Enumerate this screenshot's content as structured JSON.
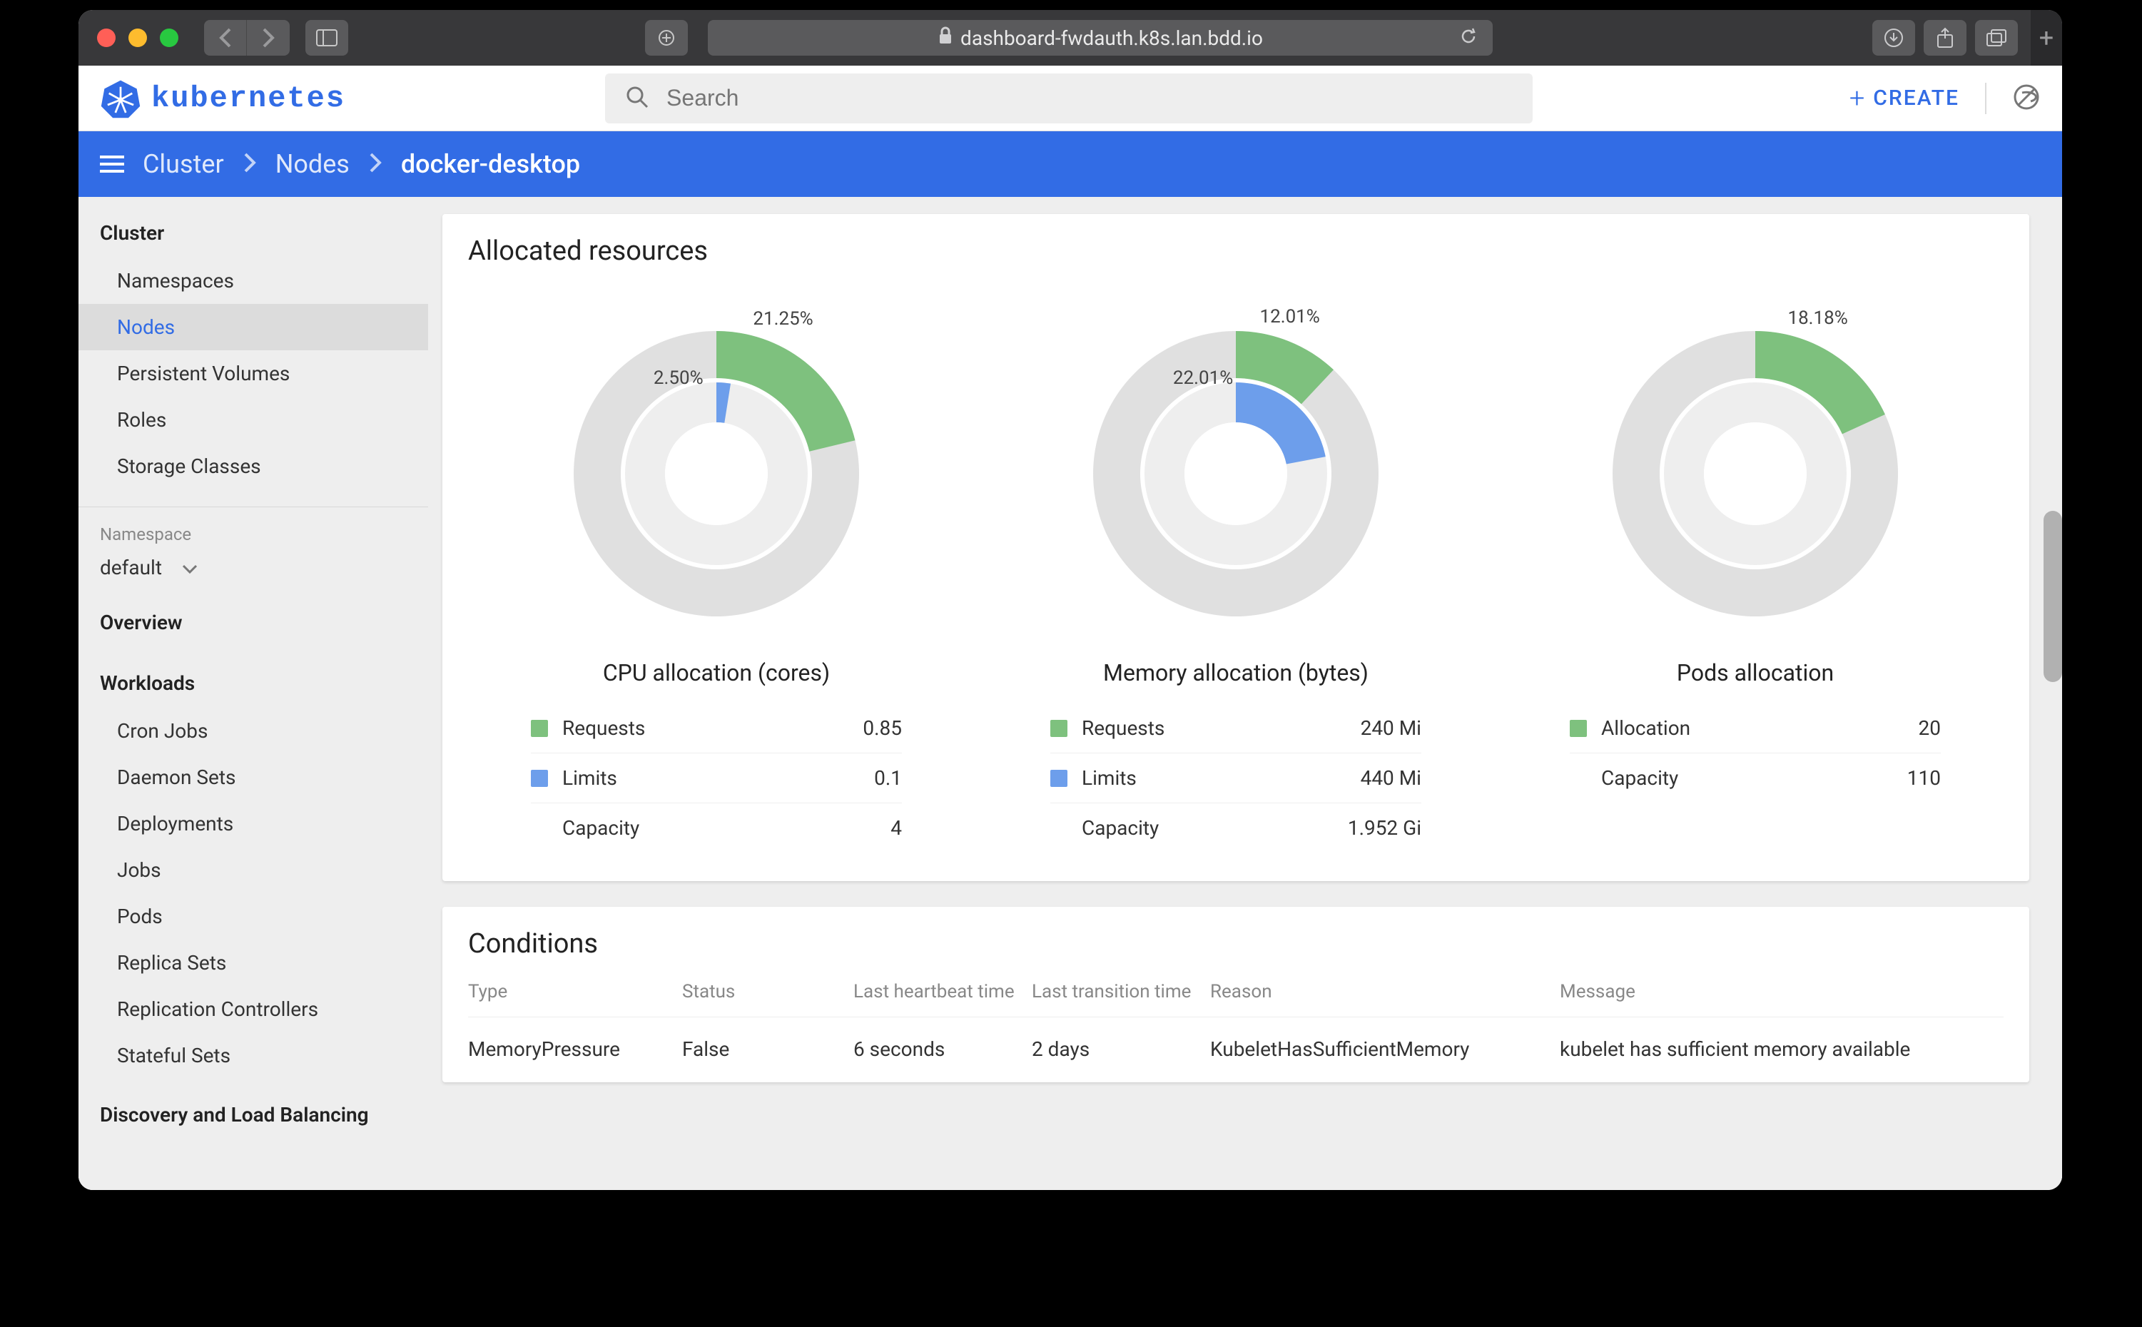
{
  "browser": {
    "url": "dashboard-fwdauth.k8s.lan.bdd.io"
  },
  "header": {
    "app_name": "kubernetes",
    "search_placeholder": "Search",
    "create_label": "CREATE"
  },
  "breadcrumb": {
    "items": [
      "Cluster",
      "Nodes",
      "docker-desktop"
    ]
  },
  "sidebar": {
    "sections": [
      {
        "title": "Cluster",
        "items": [
          "Namespaces",
          "Nodes",
          "Persistent Volumes",
          "Roles",
          "Storage Classes"
        ]
      },
      {
        "title": "Overview",
        "items": []
      },
      {
        "title": "Workloads",
        "items": [
          "Cron Jobs",
          "Daemon Sets",
          "Deployments",
          "Jobs",
          "Pods",
          "Replica Sets",
          "Replication Controllers",
          "Stateful Sets"
        ]
      },
      {
        "title": "Discovery and Load Balancing",
        "items": []
      }
    ],
    "namespace_label": "Namespace",
    "namespace_value": "default",
    "selected_item": "Nodes"
  },
  "allocated": {
    "title": "Allocated resources",
    "charts": [
      {
        "caption": "CPU allocation (cores)",
        "type": "donut",
        "requests_pct": 21.25,
        "limits_pct": 2.5,
        "requests_label": "21.25%",
        "limits_label": "2.50%",
        "colors": {
          "requests": "#7ec17e",
          "limits": "#6d9eeb",
          "rest": "#e0e0e0",
          "bg": "#ffffff",
          "inner": "#eeeeee"
        },
        "legend": [
          {
            "swatch": "#7ec17e",
            "label": "Requests",
            "value": "0.85"
          },
          {
            "swatch": "#6d9eeb",
            "label": "Limits",
            "value": "0.1"
          },
          {
            "swatch": "",
            "label": "Capacity",
            "value": "4"
          }
        ]
      },
      {
        "caption": "Memory allocation (bytes)",
        "type": "donut",
        "requests_pct": 12.01,
        "limits_pct": 22.01,
        "requests_label": "12.01%",
        "limits_label": "22.01%",
        "colors": {
          "requests": "#7ec17e",
          "limits": "#6d9eeb",
          "rest": "#e0e0e0",
          "bg": "#ffffff",
          "inner": "#eeeeee"
        },
        "legend": [
          {
            "swatch": "#7ec17e",
            "label": "Requests",
            "value": "240 Mi"
          },
          {
            "swatch": "#6d9eeb",
            "label": "Limits",
            "value": "440 Mi"
          },
          {
            "swatch": "",
            "label": "Capacity",
            "value": "1.952 Gi"
          }
        ]
      },
      {
        "caption": "Pods allocation",
        "type": "donut",
        "requests_pct": 18.18,
        "limits_pct": 0,
        "requests_label": "18.18%",
        "limits_label": "",
        "colors": {
          "requests": "#7ec17e",
          "limits": "#6d9eeb",
          "rest": "#e0e0e0",
          "bg": "#ffffff",
          "inner": "#eeeeee"
        },
        "legend": [
          {
            "swatch": "#7ec17e",
            "label": "Allocation",
            "value": "20"
          },
          {
            "swatch": "",
            "label": "Capacity",
            "value": "110"
          }
        ]
      }
    ],
    "donut_style": {
      "outer_radius": 200,
      "inner_radius": 128,
      "gap_radius": 134,
      "aspect": "1:1"
    }
  },
  "conditions": {
    "title": "Conditions",
    "columns": [
      "Type",
      "Status",
      "Last heartbeat time",
      "Last transition time",
      "Reason",
      "Message"
    ],
    "rows": [
      {
        "type": "MemoryPressure",
        "status": "False",
        "hb": "6 seconds",
        "lt": "2 days",
        "reason": "KubeletHasSufficientMemory",
        "msg": "kubelet has sufficient memory available"
      }
    ]
  }
}
